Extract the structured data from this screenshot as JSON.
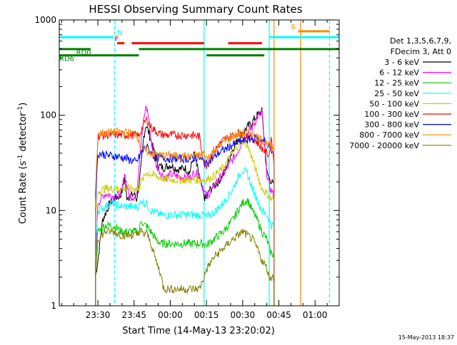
{
  "chart_data": {
    "type": "line",
    "title": "HESSI Observing Summary Count Rates",
    "xlabel": "Start Time (14-May-13 23:20:02)",
    "ylabel": "Count Rate (s",
    "ylabel_sup1": "-1",
    "ylabel_mid": " detector",
    "ylabel_sup2": "-1",
    "ylabel_end": ")",
    "y_scale": "log",
    "ylim": [
      1,
      1000
    ],
    "xlim_minutes": [
      -16,
      100
    ],
    "x_ticks": [
      {
        "label": "23:30",
        "minutes": 0
      },
      {
        "label": "23:45",
        "minutes": 15
      },
      {
        "label": "00:00",
        "minutes": 30
      },
      {
        "label": "00:15",
        "minutes": 45
      },
      {
        "label": "00:30",
        "minutes": 60
      },
      {
        "label": "00:45",
        "minutes": 75
      },
      {
        "label": "01:00",
        "minutes": 90
      }
    ],
    "y_ticks": [
      {
        "label": "1",
        "value": 1
      },
      {
        "label": "10",
        "value": 10
      },
      {
        "label": "100",
        "value": 100
      },
      {
        "label": "1000",
        "value": 1000
      }
    ],
    "timestamp": "15-May-2013 18:37",
    "legend": {
      "placement": "right",
      "header1": "Det 1,3,5,6,7,9,",
      "header2": "FDecim 3, Att 0"
    },
    "series": [
      {
        "name": "3 - 6 keV",
        "color": "#000000",
        "start": -1,
        "end": 73,
        "x": [
          -1,
          0,
          2,
          5,
          8,
          9,
          10,
          11,
          12,
          13,
          15,
          16,
          17,
          18,
          19,
          20,
          22,
          24,
          25,
          27,
          30,
          33,
          36,
          38,
          40,
          42,
          44,
          45,
          46,
          48,
          50,
          52,
          54,
          56,
          58,
          60,
          62,
          64,
          66,
          68,
          70,
          71,
          72,
          73
        ],
        "y": [
          2,
          3,
          8,
          12,
          14,
          14,
          16,
          22,
          14,
          14,
          15,
          13,
          18,
          30,
          60,
          80,
          55,
          35,
          30,
          28,
          30,
          27,
          28,
          25,
          40,
          22,
          14,
          13,
          16,
          18,
          20,
          24,
          32,
          45,
          55,
          65,
          75,
          85,
          100,
          110,
          25,
          22,
          20,
          18
        ]
      },
      {
        "name": "6 - 12 keV",
        "color": "#ff00ff",
        "start": -1,
        "end": 73,
        "x": [
          -1,
          0,
          3,
          7,
          9,
          10,
          11,
          13,
          16,
          17,
          18,
          19,
          20,
          21,
          22,
          24,
          26,
          28,
          30,
          33,
          36,
          38,
          40,
          42,
          44,
          45,
          47,
          49,
          52,
          55,
          58,
          60,
          62,
          64,
          66,
          68,
          70,
          71,
          72,
          73
        ],
        "y": [
          3,
          12,
          15,
          14,
          15,
          16,
          25,
          14,
          14,
          30,
          60,
          90,
          120,
          100,
          55,
          30,
          25,
          22,
          24,
          23,
          22,
          22,
          25,
          24,
          16,
          14,
          16,
          20,
          24,
          32,
          42,
          55,
          65,
          75,
          95,
          110,
          25,
          18,
          16,
          14
        ]
      },
      {
        "name": "12 - 25 keV",
        "color": "#00cc00",
        "start": -1,
        "end": 73,
        "x": [
          -1,
          0,
          3,
          6,
          10,
          14,
          17,
          18,
          19,
          20,
          22,
          24,
          26,
          30,
          34,
          38,
          42,
          44,
          45,
          48,
          52,
          56,
          58,
          60,
          62,
          64,
          66,
          68,
          70,
          71,
          72,
          73
        ],
        "y": [
          3,
          6,
          7,
          7,
          6,
          6,
          6,
          8,
          7,
          7,
          6,
          5,
          4.5,
          4.5,
          4.5,
          4.5,
          4.5,
          4.5,
          4.3,
          5,
          6,
          8,
          10,
          12,
          13,
          10,
          8,
          6,
          5,
          4,
          3.5,
          3.5
        ]
      },
      {
        "name": "25 - 50 keV",
        "color": "#00ffff",
        "start": -1,
        "end": 73,
        "x": [
          -1,
          0,
          3,
          6,
          10,
          14,
          17,
          18,
          19,
          20,
          22,
          26,
          30,
          34,
          38,
          42,
          44,
          45,
          48,
          52,
          56,
          58,
          60,
          62,
          64,
          66,
          68,
          70,
          71,
          72,
          73
        ],
        "y": [
          4,
          10,
          11,
          12,
          11,
          11,
          11,
          13,
          12,
          12,
          10,
          9,
          9,
          9,
          9,
          9,
          9,
          8.5,
          9.5,
          12,
          17,
          22,
          27,
          24,
          17,
          13,
          10,
          9,
          8,
          7,
          7
        ]
      },
      {
        "name": "50 - 100 keV",
        "color": "#cccc00",
        "start": -1,
        "end": 73,
        "x": [
          -1,
          0,
          3,
          6,
          10,
          14,
          17,
          18,
          19,
          20,
          22,
          26,
          30,
          34,
          38,
          42,
          44,
          45,
          48,
          52,
          55,
          58,
          60,
          62,
          64,
          66,
          68,
          70,
          71,
          72,
          73
        ],
        "y": [
          8,
          16,
          17,
          17,
          17,
          17,
          17,
          20,
          22,
          25,
          24,
          22,
          21,
          21,
          21,
          21,
          21,
          21,
          23,
          28,
          38,
          48,
          55,
          48,
          35,
          24,
          17,
          15,
          14,
          13,
          13
        ]
      },
      {
        "name": "100 - 300 keV",
        "color": "#ff0000",
        "start": -1,
        "end": 73,
        "x": [
          -1,
          0,
          4,
          8,
          12,
          16,
          17,
          18,
          19,
          20,
          21,
          22,
          24,
          26,
          28,
          30,
          34,
          38,
          40,
          42,
          44,
          45,
          46,
          48,
          50,
          52,
          55,
          58,
          61,
          64,
          66,
          68,
          70,
          71,
          72,
          73
        ],
        "y": [
          15,
          60,
          62,
          62,
          62,
          62,
          60,
          70,
          80,
          90,
          85,
          75,
          68,
          63,
          62,
          62,
          62,
          62,
          61,
          60,
          32,
          30,
          35,
          42,
          48,
          55,
          60,
          65,
          62,
          58,
          52,
          45,
          40,
          38,
          60,
          30
        ]
      },
      {
        "name": "300 - 800 keV",
        "color": "#0000ff",
        "start": -1,
        "end": 73,
        "x": [
          -1,
          0,
          4,
          8,
          12,
          16,
          18,
          20,
          22,
          24,
          26,
          30,
          34,
          38,
          42,
          44,
          45,
          47,
          50,
          54,
          58,
          62,
          66,
          70,
          71,
          72,
          73
        ],
        "y": [
          12,
          40,
          38,
          37,
          35,
          32,
          40,
          48,
          40,
          36,
          36,
          35,
          35,
          35,
          36,
          32,
          31,
          34,
          40,
          46,
          52,
          55,
          58,
          52,
          48,
          42,
          38
        ]
      },
      {
        "name": "800 - 7000 keV",
        "color": "#ff8800",
        "start": -1,
        "end": 73,
        "x": [
          -1,
          0,
          4,
          8,
          12,
          16,
          18,
          20,
          22,
          26,
          30,
          34,
          38,
          42,
          44,
          45,
          48,
          52,
          56,
          60,
          64,
          66,
          68,
          70,
          72,
          73
        ],
        "y": [
          15,
          65,
          66,
          67,
          66,
          64,
          45,
          42,
          40,
          38,
          38,
          37,
          37,
          38,
          40,
          35,
          42,
          52,
          60,
          65,
          64,
          60,
          55,
          50,
          45,
          40
        ]
      },
      {
        "name": "7000 - 20000 keV",
        "color": "#808000",
        "start": -1,
        "end": 73,
        "x": [
          -1,
          0,
          3,
          6,
          10,
          14,
          16,
          17,
          18,
          19,
          20,
          22,
          24,
          26,
          27,
          28,
          30,
          34,
          38,
          42,
          44,
          45,
          48,
          52,
          56,
          60,
          64,
          66,
          68,
          70,
          71,
          72,
          73
        ],
        "y": [
          2,
          5,
          6,
          6,
          5.5,
          5.5,
          5.5,
          6,
          6,
          5.5,
          6,
          4.5,
          3,
          2.2,
          1.6,
          1.5,
          1.5,
          1.5,
          1.5,
          1.5,
          2,
          2.4,
          3.2,
          4,
          5,
          6,
          5,
          4,
          3,
          2.5,
          2,
          2,
          2
        ]
      }
    ],
    "flags": [
      {
        "label": "N",
        "color": "#00ffff",
        "y_value": 660,
        "label_x": 8,
        "segments": [
          [
            -16,
            6.5
          ],
          [
            71,
            100
          ]
        ]
      },
      {
        "label": "F",
        "color": "#ff0000",
        "y_value": 570,
        "label_x": 7,
        "segments": [
          [
            8,
            11
          ],
          [
            14,
            44
          ],
          [
            54,
            68
          ]
        ]
      },
      {
        "label": "RD0",
        "color": "#008000",
        "y_value": 495,
        "label_x": -9,
        "segments": [
          [
            -16,
            -3
          ],
          [
            17,
            100
          ]
        ]
      },
      {
        "label": "RD6",
        "color": "#008000",
        "y_value": 425,
        "label_x": -16,
        "segments": [
          [
            -16,
            17
          ],
          [
            45,
            69
          ]
        ]
      },
      {
        "label": "S",
        "color": "#ff8800",
        "y_value": 760,
        "label_x": 80,
        "segments": [
          [
            83,
            96
          ]
        ]
      }
    ],
    "vlines": [
      {
        "minutes": 7,
        "color": "#00ffff",
        "style": "dashed"
      },
      {
        "minutes": -16,
        "color": "#00ffff",
        "style": "solid"
      },
      {
        "minutes": 44,
        "color": "#00ffff",
        "style": "solid"
      },
      {
        "minutes": 71,
        "color": "#00ffff",
        "style": "solid"
      },
      {
        "minutes": 96,
        "color": "#00ffff",
        "style": "dashed"
      },
      {
        "minutes": 84,
        "color": "#ff8800",
        "style": "solid"
      },
      {
        "minutes": 73,
        "color": "#ff8800",
        "style": "solid"
      }
    ]
  }
}
